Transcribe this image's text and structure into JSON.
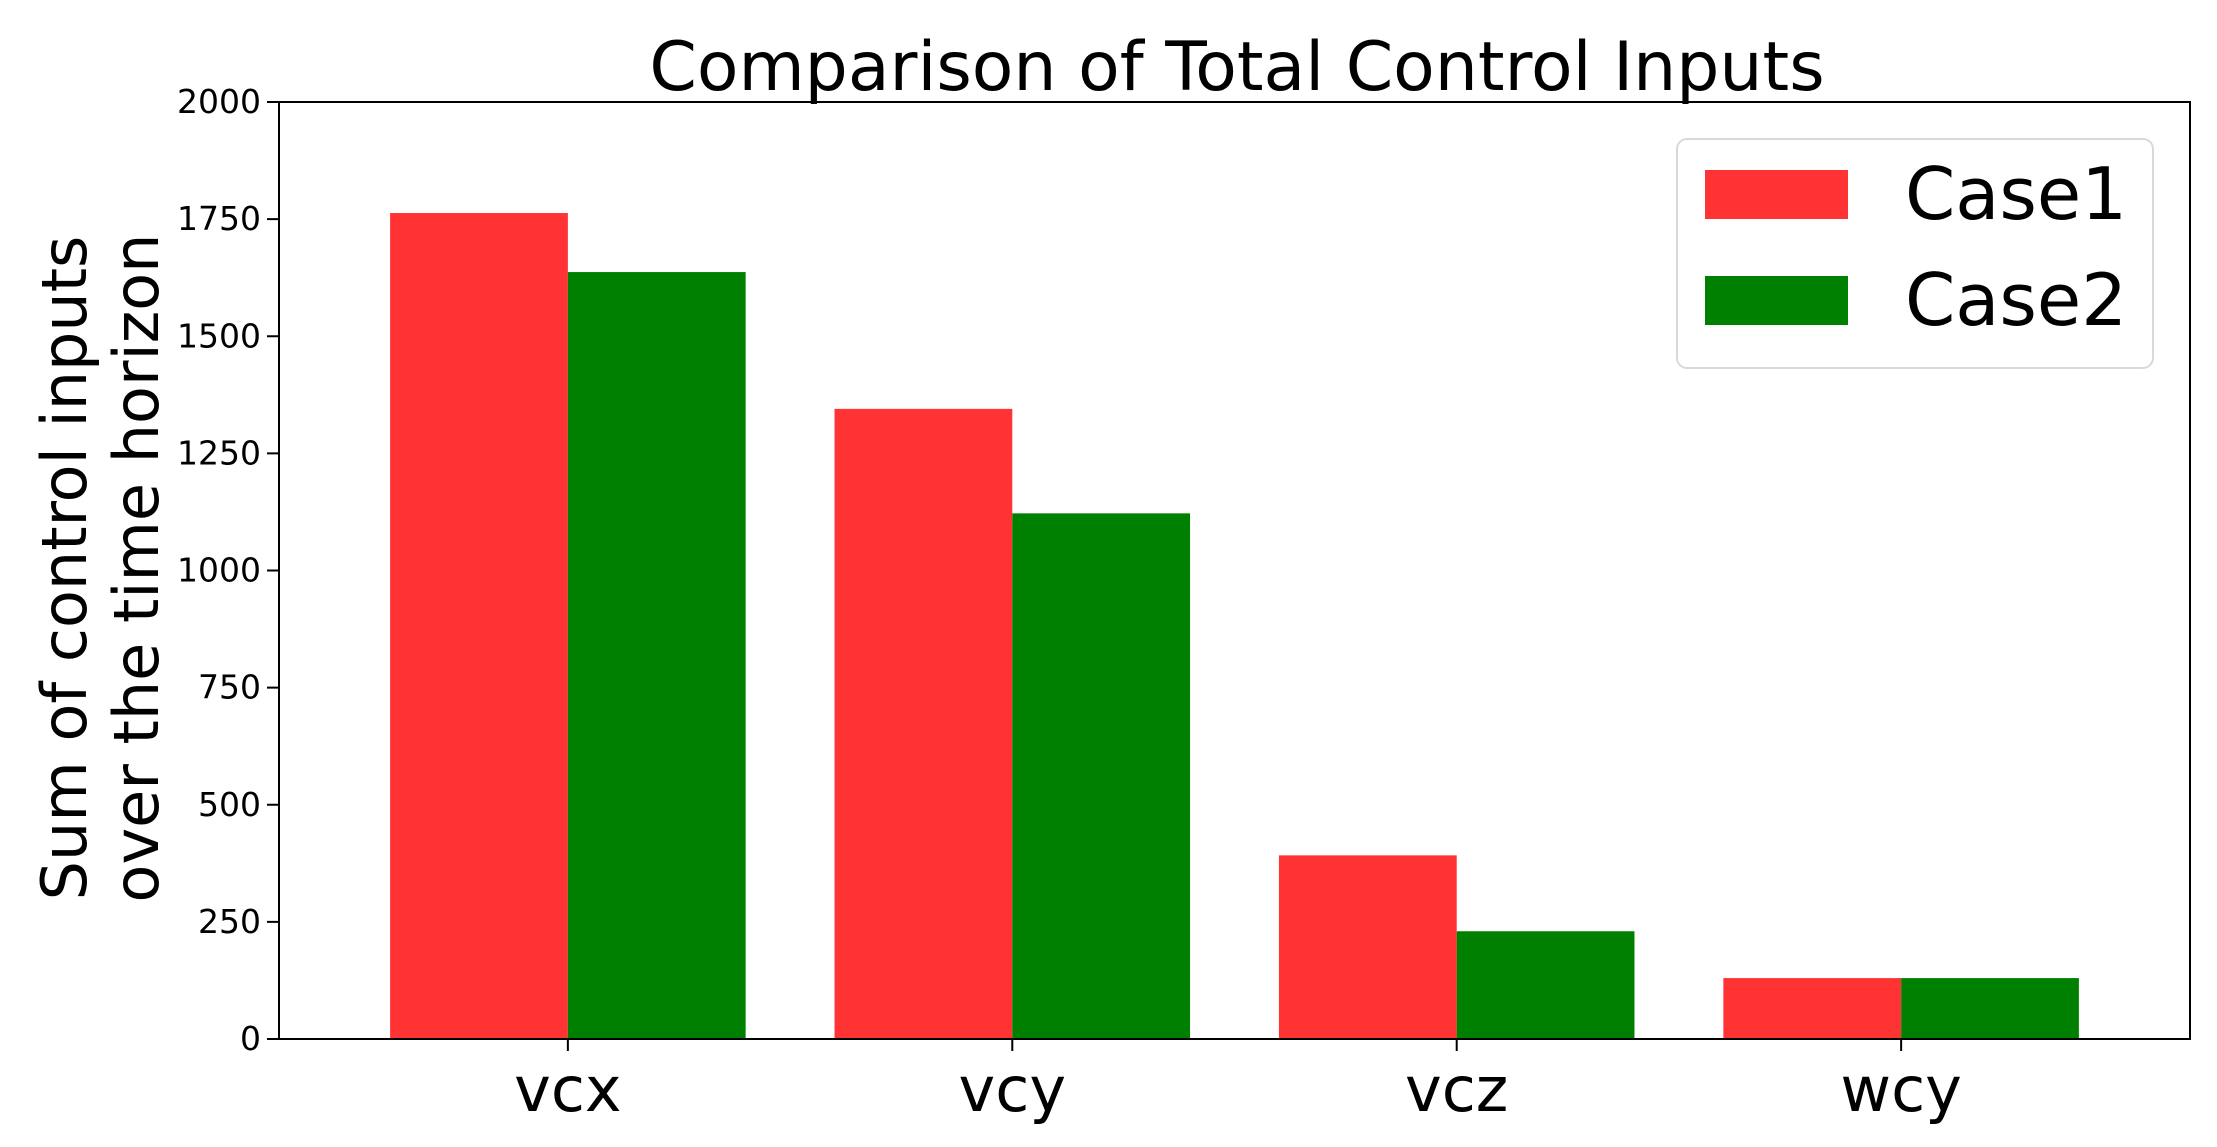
{
  "chart_data": {
    "type": "bar",
    "title": "Comparison of Total Control Inputs",
    "ylabel_lines": [
      "Sum of control inputs",
      "over the time horizon"
    ],
    "xlabel": "",
    "categories": [
      "vcx",
      "vcy",
      "vcz",
      "wcy"
    ],
    "series": [
      {
        "name": "Case1",
        "color": "#ff3333",
        "values": [
          1763,
          1345,
          392,
          130
        ]
      },
      {
        "name": "Case2",
        "color": "#008000",
        "values": [
          1637,
          1122,
          230,
          130
        ]
      }
    ],
    "ylim": [
      0,
      2000
    ],
    "yticks": [
      0,
      250,
      500,
      750,
      1000,
      1250,
      1500,
      1750,
      2000
    ],
    "grid": false,
    "legend_position": "top-right"
  }
}
